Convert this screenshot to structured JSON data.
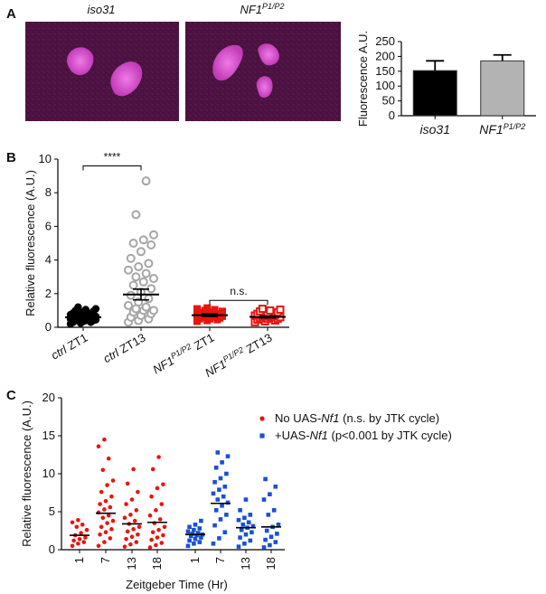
{
  "panels": {
    "a": {
      "letter": "A",
      "image_labels": [
        {
          "base": "iso31",
          "sup": ""
        },
        {
          "base": "NF1",
          "sup": "P1/P2"
        }
      ],
      "image_colors": {
        "background": "#4a1140",
        "signal": "#e060d8"
      }
    },
    "b": {
      "letter": "B"
    },
    "c": {
      "letter": "C"
    }
  },
  "chart_data": [
    {
      "id": "A",
      "type": "bar",
      "ylabel": "Fluorescence A.U.",
      "ylim": [
        0,
        250
      ],
      "yticks": [
        0,
        50,
        100,
        150,
        200,
        250
      ],
      "categories": [
        {
          "base": "iso31",
          "sup": ""
        },
        {
          "base": "NF1",
          "sup": "P1/P2"
        }
      ],
      "values": [
        152,
        185
      ],
      "errors": [
        33,
        20
      ],
      "colors": [
        "#000000",
        "#b3b3b3"
      ]
    },
    {
      "id": "B",
      "type": "scatter",
      "ylabel": "Relative fluorescence (A.U.)",
      "ylim": [
        0,
        10
      ],
      "yticks": [
        0,
        2,
        4,
        6,
        8,
        10
      ],
      "categories": [
        {
          "pre": "ctrl",
          "sup": "",
          "post": " ZT1"
        },
        {
          "pre": "ctrl",
          "sup": "",
          "post": " ZT13"
        },
        {
          "pre": "NF1",
          "sup": "P1/P2",
          "post": " ZT1"
        },
        {
          "pre": "NF1",
          "sup": "P1/P2",
          "post": " ZT13"
        }
      ],
      "groups": [
        {
          "color": "#000000",
          "marker": "filled-circle",
          "mean": 0.6,
          "sem": 0.08,
          "values": [
            0.2,
            0.25,
            0.3,
            0.3,
            0.35,
            0.4,
            0.4,
            0.4,
            0.45,
            0.45,
            0.5,
            0.5,
            0.5,
            0.55,
            0.55,
            0.6,
            0.6,
            0.6,
            0.65,
            0.65,
            0.7,
            0.7,
            0.75,
            0.75,
            0.8,
            0.85,
            0.9,
            0.95,
            1.0,
            1.05,
            1.1,
            1.2
          ]
        },
        {
          "color": "#a6a6a6",
          "marker": "open-circle",
          "mean": 1.95,
          "sem": 0.32,
          "values": [
            0.3,
            0.4,
            0.5,
            0.6,
            0.7,
            0.8,
            0.9,
            1.0,
            1.0,
            1.1,
            1.2,
            1.3,
            1.5,
            1.7,
            1.9,
            2.1,
            2.3,
            2.5,
            2.7,
            2.9,
            3.0,
            3.2,
            3.4,
            3.6,
            3.8,
            4.1,
            4.5,
            4.9,
            5.0,
            5.2,
            5.5,
            6.7,
            8.7
          ]
        },
        {
          "color": "#e8150f",
          "marker": "filled-square",
          "mean": 0.72,
          "sem": 0.07,
          "values": [
            0.35,
            0.4,
            0.45,
            0.5,
            0.5,
            0.55,
            0.6,
            0.6,
            0.65,
            0.65,
            0.7,
            0.7,
            0.7,
            0.75,
            0.75,
            0.8,
            0.8,
            0.85,
            0.9,
            0.95,
            1.0,
            1.05,
            1.1,
            1.15
          ]
        },
        {
          "color": "#e8150f",
          "marker": "open-square",
          "mean": 0.62,
          "sem": 0.06,
          "values": [
            0.3,
            0.35,
            0.4,
            0.45,
            0.5,
            0.5,
            0.55,
            0.6,
            0.6,
            0.65,
            0.65,
            0.7,
            0.7,
            0.75,
            0.8,
            0.85,
            0.9,
            0.95,
            1.0,
            1.05,
            1.1
          ]
        }
      ],
      "annotations": [
        {
          "between": [
            0,
            1
          ],
          "text": "****",
          "y": 9.6
        },
        {
          "between": [
            2,
            3
          ],
          "text": "n.s.",
          "y": 1.6
        }
      ]
    },
    {
      "id": "C",
      "type": "scatter",
      "ylabel": "Relative fluorescence (A.U.)",
      "xlabel": "Zeitgeber  Time (Hr)",
      "ylim": [
        0,
        20
      ],
      "yticks": [
        0,
        5,
        10,
        15,
        20
      ],
      "xticks": [
        "1",
        "7",
        "13",
        "18",
        "1",
        "7",
        "13",
        "18"
      ],
      "legend": [
        {
          "marker": "circle",
          "color": "#e8150f",
          "pre": "No UAS-",
          "it": "Nf1",
          "post": " (n.s. by JTK cycle)"
        },
        {
          "marker": "square",
          "color": "#1a4fd6",
          "pre": "+UAS-",
          "it": "Nf1",
          "post": " (p<0.001 by  JTK cycle)"
        }
      ],
      "series": [
        {
          "color": "#e8150f",
          "marker": "circle",
          "groups": [
            {
              "tick": 0,
              "mean": 1.9,
              "values": [
                0.5,
                0.8,
                1.0,
                1.2,
                1.4,
                1.6,
                1.9,
                2.2,
                2.6,
                3.0,
                3.3,
                3.6,
                3.9
              ]
            },
            {
              "tick": 1,
              "mean": 4.8,
              "values": [
                0.5,
                1.0,
                1.5,
                2.0,
                2.3,
                2.7,
                3.0,
                3.5,
                3.8,
                4.2,
                4.5,
                4.9,
                5.3,
                5.6,
                6.0,
                6.4,
                7.0,
                7.6,
                8.5,
                9.1,
                10.5,
                12.0,
                13.6,
                14.5
              ]
            },
            {
              "tick": 2,
              "mean": 3.4,
              "values": [
                0.4,
                0.7,
                1.0,
                1.4,
                1.7,
                2.0,
                2.4,
                2.7,
                3.0,
                3.4,
                3.8,
                4.2,
                4.6,
                5.2,
                6.0,
                6.6,
                7.6,
                8.7,
                10.6
              ]
            },
            {
              "tick": 3,
              "mean": 3.6,
              "values": [
                0.3,
                0.6,
                0.9,
                1.3,
                1.6,
                1.9,
                2.3,
                2.6,
                3.0,
                3.5,
                4.0,
                4.5,
                5.2,
                6.0,
                7.0,
                8.1,
                8.6,
                10.6,
                12.2
              ]
            }
          ]
        },
        {
          "color": "#1a4fd6",
          "marker": "square",
          "groups": [
            {
              "tick": 4,
              "mean": 2.0,
              "values": [
                0.5,
                0.8,
                1.0,
                1.2,
                1.4,
                1.6,
                1.8,
                1.9,
                2.0,
                2.1,
                2.2,
                2.4,
                2.6,
                2.8,
                3.0,
                3.3,
                3.8
              ]
            },
            {
              "tick": 5,
              "mean": 6.1,
              "values": [
                0.8,
                1.5,
                2.3,
                3.2,
                4.0,
                4.6,
                5.2,
                5.8,
                6.2,
                6.6,
                7.0,
                7.4,
                7.9,
                8.3,
                8.9,
                9.4,
                10.0,
                10.8,
                11.5,
                12.3,
                12.8
              ]
            },
            {
              "tick": 6,
              "mean": 2.9,
              "values": [
                0.4,
                0.8,
                1.2,
                1.6,
                2.0,
                2.3,
                2.6,
                2.9,
                3.1,
                3.3,
                3.6,
                3.9,
                4.2,
                4.6,
                5.2,
                6.6
              ]
            },
            {
              "tick": 7,
              "mean": 3.0,
              "values": [
                0.3,
                0.6,
                1.0,
                1.3,
                1.7,
                2.1,
                2.5,
                3.0,
                3.3,
                4.6,
                5.2,
                6.6,
                7.3,
                8.3,
                9.3
              ]
            }
          ]
        }
      ]
    }
  ]
}
